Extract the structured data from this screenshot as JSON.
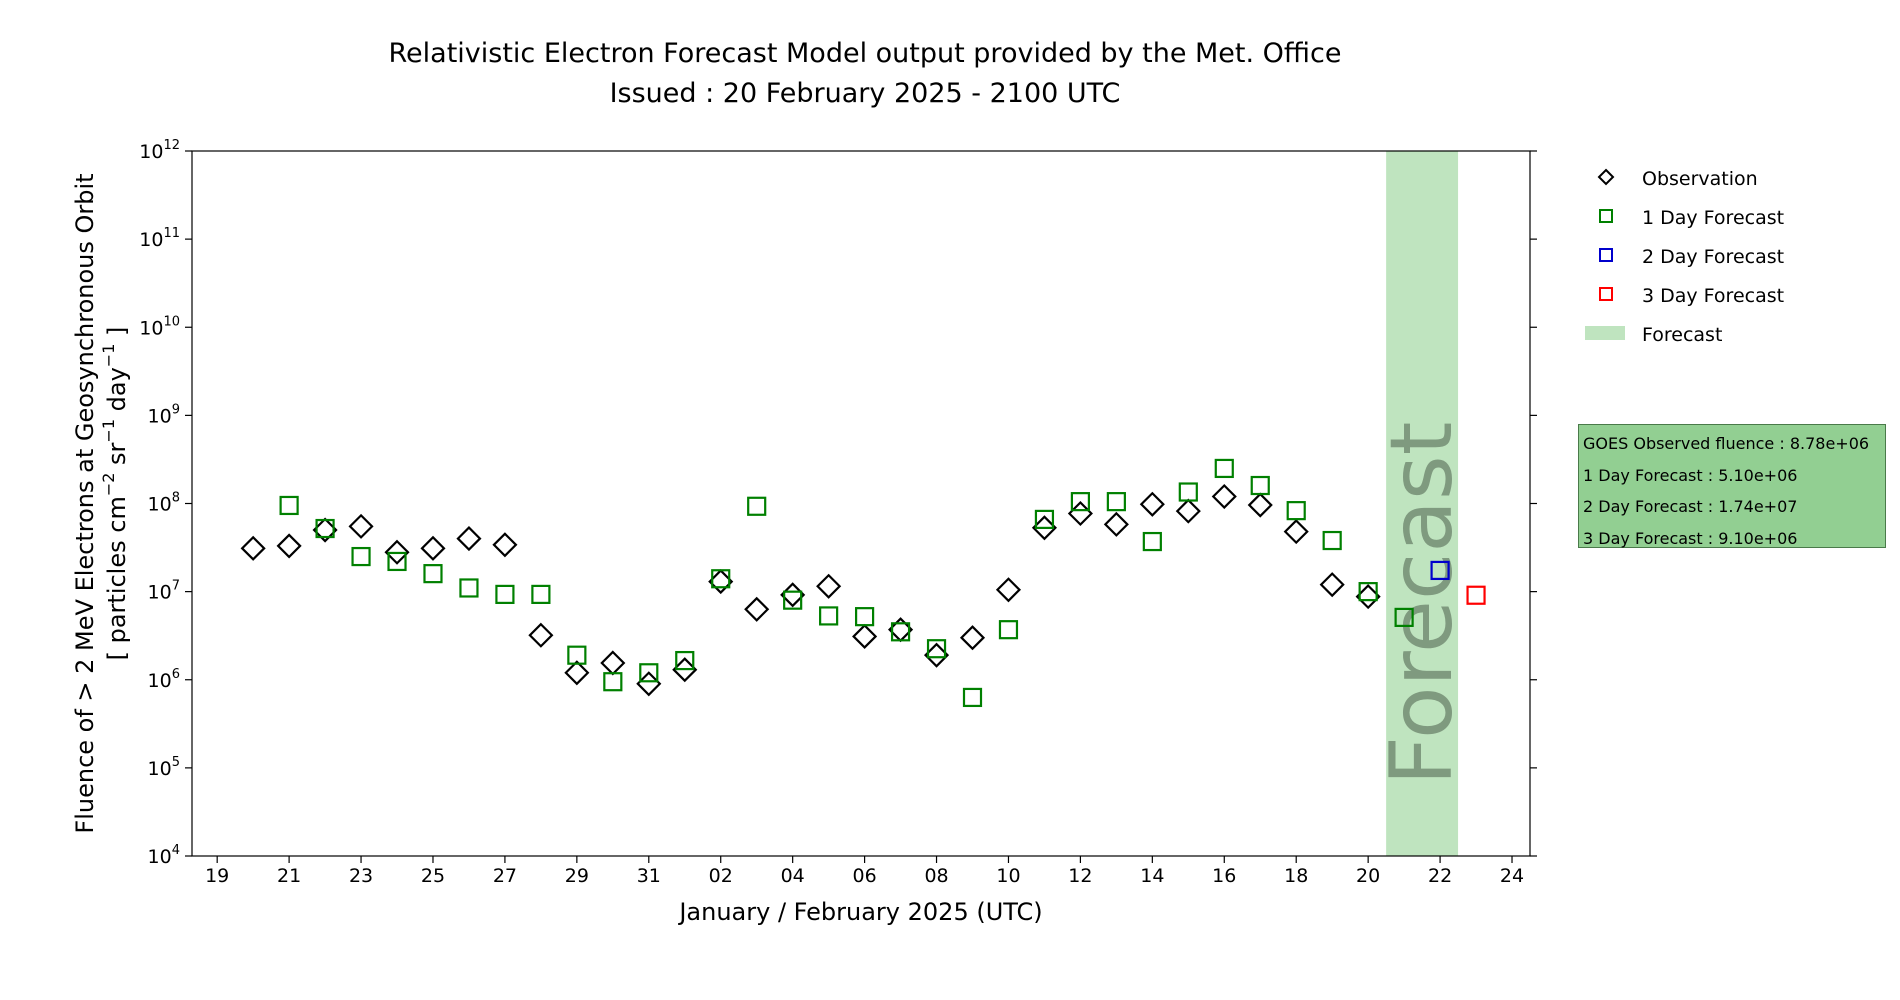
{
  "title": {
    "line1": "Relativistic Electron Forecast Model output provided by the Met. Office",
    "line2": "Issued : 20 February 2025 - 2100 UTC"
  },
  "legend": [
    {
      "label": "Observation",
      "marker": "diamond",
      "color": "#000000"
    },
    {
      "label": "1 Day Forecast",
      "marker": "square",
      "color": "#008000"
    },
    {
      "label": "2 Day Forecast",
      "marker": "square",
      "color": "#0000cc"
    },
    {
      "label": "3 Day Forecast",
      "marker": "square",
      "color": "#ff0000"
    },
    {
      "label": "Forecast",
      "marker": "band",
      "color": "#bfe4bf"
    }
  ],
  "info_box": {
    "observed": "GOES Observed fluence : 8.78e+06",
    "day1": "1 Day Forecast : 5.10e+06",
    "day2": "2 Day Forecast : 1.74e+07",
    "day3": "3 Day Forecast : 9.10e+06"
  },
  "chart_data": {
    "type": "scatter",
    "xlabel": "January / February 2025 (UTC)",
    "ylabel_line1": "Fluence of > 2 MeV Electrons at Geosynchronous Orbit",
    "ylabel_line2": "[ particles cm",
    "ylabel_sup1": "−2",
    "ylabel_mid": " sr",
    "ylabel_sup2": "−1",
    "ylabel_mid2": " day",
    "ylabel_sup3": "−1",
    "ylabel_end": " ]",
    "x_unit": "days since 2025-01-19",
    "xlim": [
      -0.7,
      36.5
    ],
    "xticks": [
      {
        "x": 0,
        "label": "19"
      },
      {
        "x": 2,
        "label": "21"
      },
      {
        "x": 4,
        "label": "23"
      },
      {
        "x": 6,
        "label": "25"
      },
      {
        "x": 8,
        "label": "27"
      },
      {
        "x": 10,
        "label": "29"
      },
      {
        "x": 12,
        "label": "31"
      },
      {
        "x": 14,
        "label": "02"
      },
      {
        "x": 16,
        "label": "04"
      },
      {
        "x": 18,
        "label": "06"
      },
      {
        "x": 20,
        "label": "08"
      },
      {
        "x": 22,
        "label": "10"
      },
      {
        "x": 24,
        "label": "12"
      },
      {
        "x": 26,
        "label": "14"
      },
      {
        "x": 28,
        "label": "16"
      },
      {
        "x": 30,
        "label": "18"
      },
      {
        "x": 32,
        "label": "20"
      },
      {
        "x": 34,
        "label": "22"
      },
      {
        "x": 36,
        "label": "24"
      }
    ],
    "ylim_log10": [
      4,
      12
    ],
    "yticks": [
      4,
      5,
      6,
      7,
      8,
      9,
      10,
      11,
      12
    ],
    "ytick_base": "10",
    "forecast_band": {
      "x0": 32.5,
      "x1": 34.5,
      "label": "Forecast"
    },
    "series": [
      {
        "name": "Observation",
        "marker": "diamond",
        "color": "#000000",
        "x": [
          1,
          2,
          3,
          4,
          5,
          6,
          7,
          8,
          9,
          10,
          11,
          12,
          13,
          14,
          15,
          16,
          17,
          18,
          19,
          20,
          21,
          22,
          23,
          24,
          25,
          26,
          27,
          28,
          29,
          30,
          31,
          32
        ],
        "y": [
          31000000.0,
          33000000.0,
          50000000.0,
          55000000.0,
          28000000.0,
          31000000.0,
          40000000.0,
          34000000.0,
          3200000.0,
          1200000.0,
          1550000.0,
          900000.0,
          1300000.0,
          13000000.0,
          6300000.0,
          9200000.0,
          11500000.0,
          3100000.0,
          3700000.0,
          1900000.0,
          3000000.0,
          10500000.0,
          53000000.0,
          77000000.0,
          58000000.0,
          98000000.0,
          82000000.0,
          120000000.0,
          96000000.0,
          48000000.0,
          12000000.0,
          8780000.0
        ]
      },
      {
        "name": "1 Day Forecast",
        "marker": "square",
        "color": "#008000",
        "x": [
          2,
          3,
          4,
          5,
          6,
          7,
          8,
          9,
          10,
          11,
          12,
          13,
          14,
          15,
          16,
          17,
          18,
          19,
          20,
          21,
          22,
          23,
          24,
          25,
          26,
          27,
          28,
          29,
          30,
          31,
          32,
          33
        ],
        "y": [
          95000000.0,
          52000000.0,
          25000000.0,
          22000000.0,
          16000000.0,
          11000000.0,
          9300000.0,
          9300000.0,
          1900000.0,
          950000.0,
          1200000.0,
          1650000.0,
          14000000.0,
          93000000.0,
          8000000.0,
          5300000.0,
          5200000.0,
          3500000.0,
          2250000.0,
          630000.0,
          3700000.0,
          66000000.0,
          105000000.0,
          105000000.0,
          37000000.0,
          135000000.0,
          250000000.0,
          160000000.0,
          83000000.0,
          38000000.0,
          10000000.0,
          5100000.0
        ]
      },
      {
        "name": "2 Day Forecast",
        "marker": "square",
        "color": "#0000cc",
        "x": [
          34
        ],
        "y": [
          17400000.0
        ]
      },
      {
        "name": "3 Day Forecast",
        "marker": "square",
        "color": "#ff0000",
        "x": [
          35
        ],
        "y": [
          9100000.0
        ]
      }
    ]
  }
}
